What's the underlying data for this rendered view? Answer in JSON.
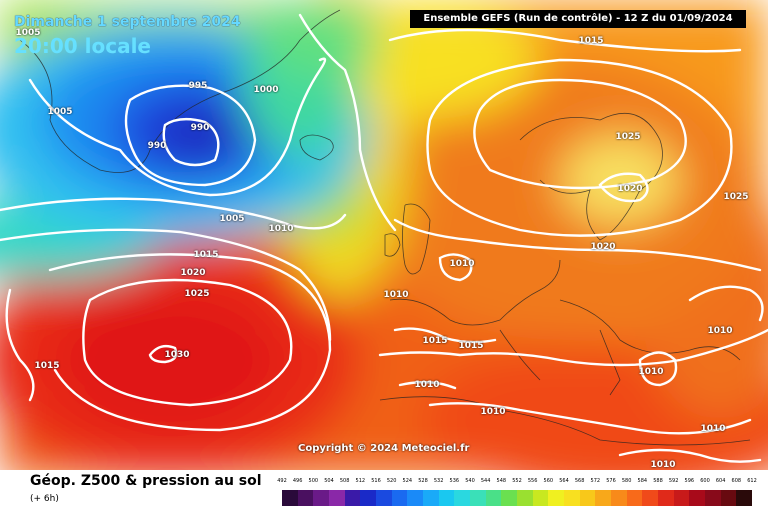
{
  "header": {
    "date": "Dimanche 1 septembre 2024",
    "time": "20:00 locale",
    "run": "Ensemble GEFS  (Run de contrôle)  -  12 Z du 01/09/2024"
  },
  "copyright": "Copyright © 2024 Meteociel.fr",
  "footer": {
    "title": "Géop. Z500 & pression au sol",
    "subtitle": "(+ 6h)"
  },
  "legend": {
    "ticks": [
      "492",
      "496",
      "500",
      "504",
      "508",
      "512",
      "516",
      "520",
      "524",
      "528",
      "532",
      "536",
      "540",
      "544",
      "548",
      "552",
      "556",
      "560",
      "564",
      "568",
      "572",
      "576",
      "580",
      "584",
      "588",
      "592",
      "596",
      "600",
      "604",
      "608",
      "612"
    ],
    "colors": [
      "#2a0a3a",
      "#4a1060",
      "#6a1a88",
      "#8a28a8",
      "#3a1aa8",
      "#1a2ac8",
      "#1a4ae0",
      "#1a6af0",
      "#1a8af8",
      "#1aaaf8",
      "#1ac8f0",
      "#2ad8e0",
      "#3ae0b8",
      "#4ae088",
      "#6ae050",
      "#9ae030",
      "#c8e820",
      "#f0f020",
      "#f8e020",
      "#f8c81a",
      "#f8a81a",
      "#f88a1a",
      "#f86a1a",
      "#f04a1a",
      "#e02a1a",
      "#c81a1a",
      "#a80a1a",
      "#880a1a",
      "#680a10",
      "#2a0a0a"
    ]
  },
  "isobars": [
    {
      "label": "1005",
      "pos": "tl1"
    },
    {
      "label": "1005",
      "pos": "tl2"
    },
    {
      "label": "995",
      "pos": "l1"
    },
    {
      "label": "990",
      "pos": "l2"
    },
    {
      "label": "990",
      "pos": "l3"
    },
    {
      "label": "1000",
      "pos": "l4"
    },
    {
      "label": "1015",
      "pos": "n1"
    },
    {
      "label": "1025",
      "pos": "s1"
    },
    {
      "label": "1020",
      "pos": "s2"
    },
    {
      "label": "1025",
      "pos": "s3"
    },
    {
      "label": "1005",
      "pos": "a1"
    },
    {
      "label": "1010",
      "pos": "a2"
    },
    {
      "label": "1015",
      "pos": "a3"
    },
    {
      "label": "1020",
      "pos": "a4"
    },
    {
      "label": "1025",
      "pos": "a5"
    },
    {
      "label": "1030",
      "pos": "a6"
    },
    {
      "label": "1015",
      "pos": "a7"
    },
    {
      "label": "1010",
      "pos": "u1"
    },
    {
      "label": "1010",
      "pos": "u2"
    },
    {
      "label": "1020",
      "pos": "u3"
    },
    {
      "label": "1015",
      "pos": "m1"
    },
    {
      "label": "1015",
      "pos": "m2"
    },
    {
      "label": "1010",
      "pos": "m3"
    },
    {
      "label": "1010",
      "pos": "m4"
    },
    {
      "label": "1010",
      "pos": "m5"
    },
    {
      "label": "1010",
      "pos": "m6"
    },
    {
      "label": "1010",
      "pos": "m7"
    },
    {
      "label": "1010",
      "pos": "m8"
    }
  ]
}
